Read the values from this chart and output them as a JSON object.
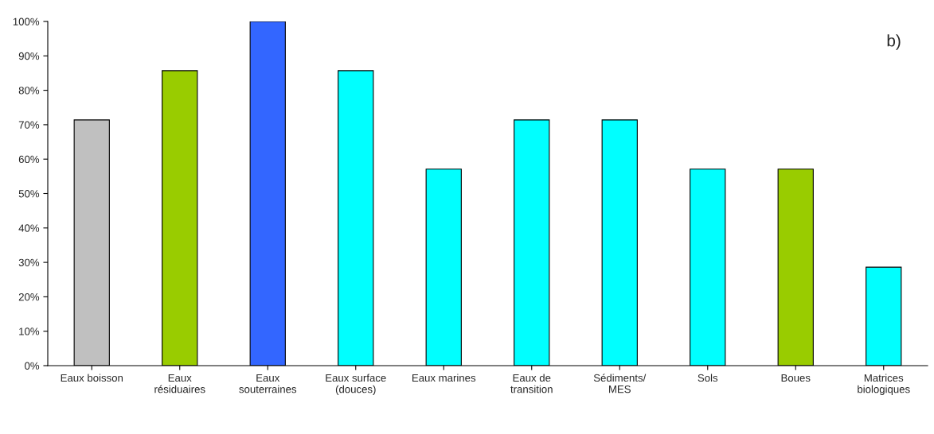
{
  "chart_data": {
    "type": "bar",
    "categories": [
      "Eaux boisson",
      "Eaux\nrésiduaires",
      "Eaux\nsouterraines",
      "Eaux surface\n(douces)",
      "Eaux marines",
      "Eaux de\ntransition",
      "Sédiments/\nMES",
      "Sols",
      "Boues",
      "Matrices\nbiologiques"
    ],
    "values": [
      71.4,
      85.7,
      100,
      85.7,
      57.1,
      71.4,
      71.4,
      57.1,
      57.1,
      28.6
    ],
    "colors": [
      "#c0c0c0",
      "#99cc00",
      "#3366ff",
      "#00ffff",
      "#00ffff",
      "#00ffff",
      "#00ffff",
      "#00ffff",
      "#99cc00",
      "#00ffff"
    ],
    "ylim": [
      0,
      100
    ],
    "yticks": [
      {
        "value": 0,
        "label": "0%"
      },
      {
        "value": 10,
        "label": "10%"
      },
      {
        "value": 20,
        "label": "20%"
      },
      {
        "value": 30,
        "label": "30%"
      },
      {
        "value": 40,
        "label": "40%"
      },
      {
        "value": 50,
        "label": "50%"
      },
      {
        "value": 60,
        "label": "60%"
      },
      {
        "value": 70,
        "label": "70%"
      },
      {
        "value": 80,
        "label": "80%"
      },
      {
        "value": 90,
        "label": "90%"
      },
      {
        "value": 100,
        "label": "100%"
      }
    ],
    "grid": false,
    "legend": false,
    "annotations": [
      "b)"
    ]
  }
}
